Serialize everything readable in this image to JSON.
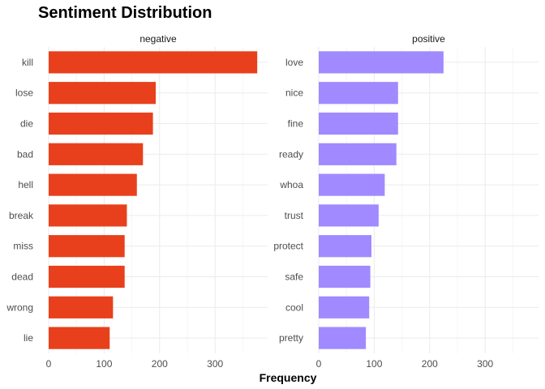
{
  "chart_data": {
    "type": "bar",
    "orientation": "horizontal",
    "title": "Sentiment Distribution",
    "xlabel": "Frequency",
    "ylabel": "",
    "xlim": [
      0,
      388
    ],
    "x_ticks": [
      0,
      100,
      200,
      300
    ],
    "grid": true,
    "facets": [
      {
        "label": "negative",
        "color": "#E8401C",
        "categories": [
          "kill",
          "lose",
          "die",
          "bad",
          "hell",
          "break",
          "miss",
          "dead",
          "wrong",
          "lie"
        ],
        "values": [
          376,
          193,
          188,
          170,
          159,
          141,
          137,
          137,
          116,
          110
        ]
      },
      {
        "label": "positive",
        "color": "#A18AFF",
        "categories": [
          "love",
          "nice",
          "fine",
          "ready",
          "whoa",
          "trust",
          "protect",
          "safe",
          "cool",
          "pretty"
        ],
        "values": [
          225,
          143,
          143,
          140,
          119,
          108,
          95,
          93,
          91,
          85
        ]
      }
    ]
  }
}
